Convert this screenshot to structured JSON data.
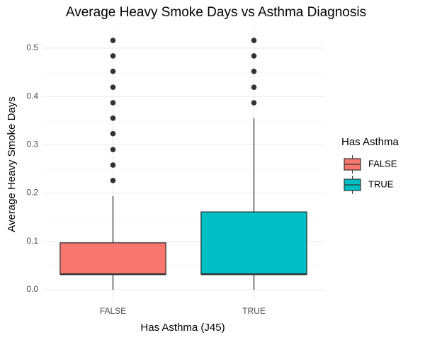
{
  "chart_data": {
    "type": "box",
    "title": "Average Heavy Smoke Days vs Asthma Diagnosis",
    "x_label": "Has Asthma (J45)",
    "y_label": "Average Heavy Smoke Days",
    "legend_title": "Has Asthma",
    "categories": [
      "FALSE",
      "TRUE"
    ],
    "series": [
      {
        "name": "FALSE",
        "color": "#F8766D",
        "min": 0,
        "q1": 0.032,
        "median": 0.032,
        "q3": 0.097,
        "max": 0.194,
        "outliers": [
          0.226,
          0.258,
          0.29,
          0.323,
          0.355,
          0.387,
          0.419,
          0.452,
          0.484,
          0.516
        ]
      },
      {
        "name": "TRUE",
        "color": "#00BFC4",
        "min": 0,
        "q1": 0.032,
        "median": 0.032,
        "q3": 0.161,
        "max": 0.355,
        "outliers": [
          0.387,
          0.419,
          0.452,
          0.484,
          0.516
        ]
      }
    ],
    "ylim": [
      -0.025,
      0.54
    ],
    "yticks": [
      {
        "value": 0,
        "label": "0.0"
      },
      0.1,
      0.2,
      0.3,
      0.4,
      0.5
    ],
    "grid": true,
    "legend_position": "right"
  }
}
